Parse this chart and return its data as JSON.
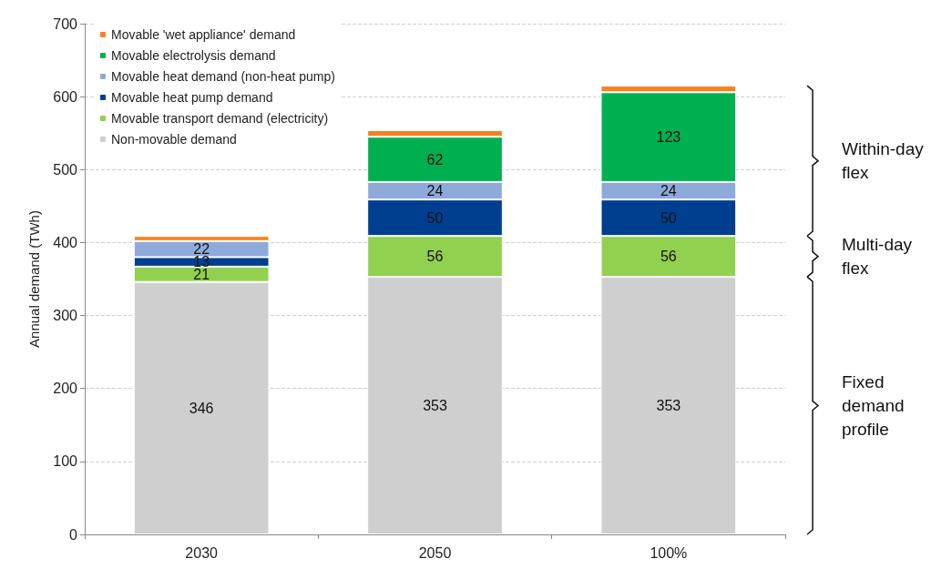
{
  "chart_data": {
    "type": "bar",
    "stacked": true,
    "ylabel": "Annual demand (TWh)",
    "categories": [
      "2030",
      "2050",
      "100%"
    ],
    "series": [
      {
        "name": "Non-movable demand",
        "color": "#cfcfcf",
        "values": [
          346,
          353,
          353
        ],
        "value_labels": [
          "346",
          "353",
          "353"
        ]
      },
      {
        "name": "Movable transport demand (electricity)",
        "color": "#92d050",
        "values": [
          21,
          56,
          56
        ],
        "value_labels": [
          "21",
          "56",
          "56"
        ]
      },
      {
        "name": "Movable heat pump demand",
        "color": "#003f8f",
        "values": [
          13,
          50,
          50
        ],
        "value_labels": [
          "13",
          "50",
          "50"
        ]
      },
      {
        "name": "Movable heat demand (non-heat pump)",
        "color": "#8eaadb",
        "values": [
          22,
          24,
          24
        ],
        "value_labels": [
          "22",
          "24",
          "24"
        ]
      },
      {
        "name": "Movable electrolysis demand",
        "color": "#00b050",
        "values": [
          0,
          62,
          123
        ],
        "value_labels": [
          null,
          "62",
          "123"
        ]
      },
      {
        "name": "Movable 'wet appliance' demand",
        "color": "#f58220",
        "values": [
          7,
          9,
          9
        ],
        "value_labels": [
          null,
          null,
          null
        ]
      }
    ],
    "ylim": [
      0,
      700
    ],
    "yticks": [
      0,
      100,
      200,
      300,
      400,
      500,
      600,
      700
    ],
    "grid": "y",
    "legend": "top left",
    "annotations": [
      "Within-day flex",
      "Multi-day flex",
      "Fixed demand profile"
    ]
  }
}
